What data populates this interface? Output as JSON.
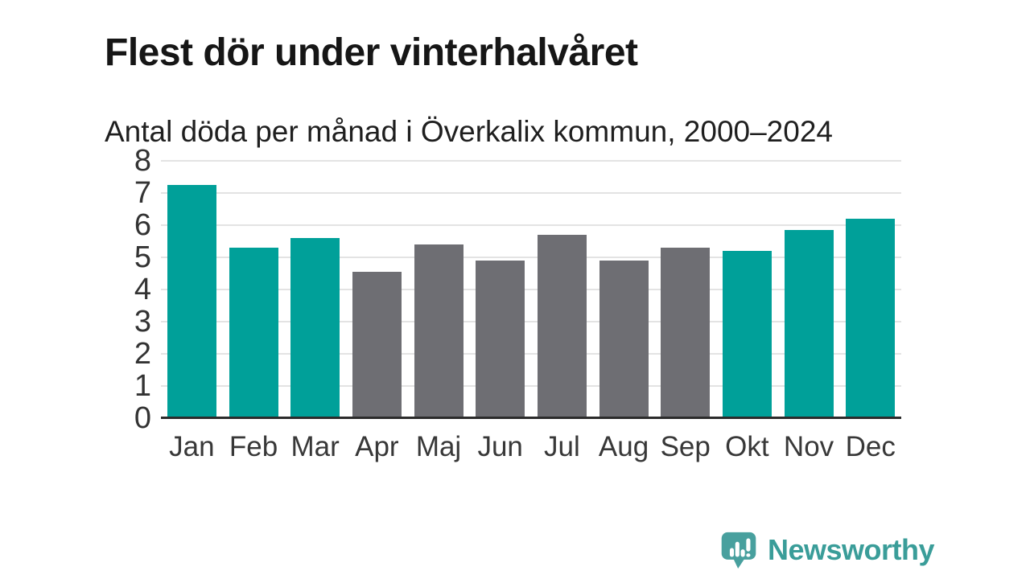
{
  "header": {
    "title": "Flest dör under vinterhalvåret",
    "subtitle": "Antal döda per månad i Överkalix kommun, 2000–2024"
  },
  "chart_data": {
    "type": "bar",
    "title": "Flest dör under vinterhalvåret",
    "subtitle": "Antal döda per månad i Överkalix kommun, 2000–2024",
    "categories": [
      "Jan",
      "Feb",
      "Mar",
      "Apr",
      "Maj",
      "Jun",
      "Jul",
      "Aug",
      "Sep",
      "Okt",
      "Nov",
      "Dec"
    ],
    "values": [
      7.25,
      5.3,
      5.6,
      4.55,
      5.4,
      4.9,
      5.7,
      4.9,
      5.3,
      5.2,
      5.85,
      6.2
    ],
    "bar_colors": [
      "#00a099",
      "#00a099",
      "#00a099",
      "#6e6e73",
      "#6e6e73",
      "#6e6e73",
      "#6e6e73",
      "#6e6e73",
      "#6e6e73",
      "#00a099",
      "#00a099",
      "#00a099"
    ],
    "highlight_color": "#00a099",
    "base_color": "#6e6e73",
    "highlighted_categories": [
      "Jan",
      "Feb",
      "Mar",
      "Okt",
      "Nov",
      "Dec"
    ],
    "xlabel": "",
    "ylabel": "",
    "ylim": [
      0,
      8
    ],
    "yticks": [
      0,
      1,
      2,
      3,
      4,
      5,
      6,
      7,
      8
    ],
    "grid": "horizontal",
    "gridline_color": "#e3e3e3",
    "axis_line_color": "#2b2b2b",
    "legend": "none"
  },
  "footer": {
    "brand": "Newsworthy",
    "brand_color": "#3a9d99",
    "logo_color": "#48a09e",
    "logo_icon": "newsworthy-speech-bubble-bars-icon"
  }
}
